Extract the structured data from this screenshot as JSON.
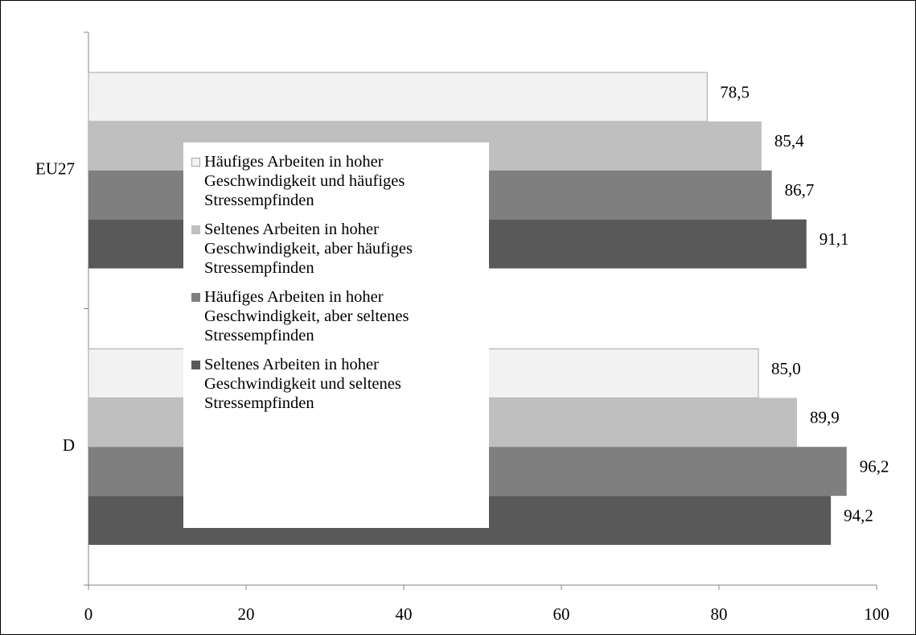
{
  "chart_data": {
    "type": "hbar",
    "categories": [
      "EU27",
      "D"
    ],
    "series": [
      {
        "name": "Häufiges Arbeiten in hoher Geschwindigkeit  und häufiges Stressempfinden",
        "color": "#f2f2f2",
        "values": [
          78.5,
          85.0
        ],
        "value_labels": [
          "78,5",
          "85,0"
        ]
      },
      {
        "name": "Seltenes Arbeiten in hoher Geschwindigkeit, aber häufiges Stressempfinden",
        "color": "#bfbfbf",
        "values": [
          85.4,
          89.9
        ],
        "value_labels": [
          "85,4",
          "89,9"
        ]
      },
      {
        "name": "Häufiges Arbeiten in hoher Geschwindigkeit, aber seltenes Stressempfinden",
        "color": "#7f7f7f",
        "values": [
          86.7,
          96.2
        ],
        "value_labels": [
          "86,7",
          "96,2"
        ]
      },
      {
        "name": "Seltenes Arbeiten in hoher Geschwindigkeit und seltenes Stressempfinden",
        "color": "#595959",
        "values": [
          91.1,
          94.2
        ],
        "value_labels": [
          "91,1",
          "94,2"
        ]
      }
    ],
    "xlim": [
      0,
      100
    ],
    "xticks": [
      0,
      20,
      40,
      60,
      80,
      100
    ]
  }
}
